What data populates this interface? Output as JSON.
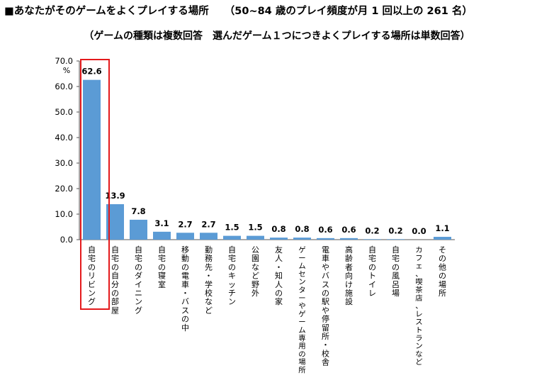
{
  "header": {
    "title": "■あなたがそのゲームをよくプレイする場所",
    "title_range": "（50~84 歳のプレイ頻度が月 1 回以上の 261 名）",
    "subtitle": "（ゲームの種類は複数回答　選んだゲーム１つにつきよくプレイする場所は単数回答）"
  },
  "colors": {
    "bar": "#5b9bd5",
    "highlight_border": "#e41a1c",
    "axis": "#555555"
  },
  "chart_data": {
    "type": "bar",
    "title": "あなたがそのゲームをよくプレイする場所",
    "ylabel": "%",
    "ylim": [
      0,
      70
    ],
    "yticks": [
      0,
      10,
      20,
      30,
      40,
      50,
      60,
      70
    ],
    "ytick_labels": [
      "0.0",
      "10.0",
      "20.0",
      "30.0",
      "40.0",
      "50.0",
      "60.0",
      "70.0"
    ],
    "categories": [
      "自宅のリビング",
      "自宅の自分の部屋",
      "自宅のダイニング",
      "自宅の寝室",
      "移動の電車・バスの中",
      "勤務先・学校など",
      "自宅のキッチン",
      "公園など野外",
      "友人・知人の家",
      "ゲームセンターやゲーム専用の場所",
      "電車やバスの駅や停留所・校舎",
      "高齢者向け施設",
      "自宅のトイレ",
      "自宅の風呂場",
      "カフェ、喫茶店、レストランなど",
      "その他の場所"
    ],
    "values": [
      62.6,
      13.9,
      7.8,
      3.1,
      2.7,
      2.7,
      1.5,
      1.5,
      0.8,
      0.8,
      0.6,
      0.6,
      0.2,
      0.2,
      0.0,
      1.1
    ],
    "value_labels": [
      "62.6",
      "13.9",
      "7.8",
      "3.1",
      "2.7",
      "2.7",
      "1.5",
      "1.5",
      "0.8",
      "0.8",
      "0.6",
      "0.6",
      "0.2",
      "0.2",
      "0.0",
      "1.1"
    ],
    "highlighted_category": "自宅のリビング",
    "grid": false
  }
}
